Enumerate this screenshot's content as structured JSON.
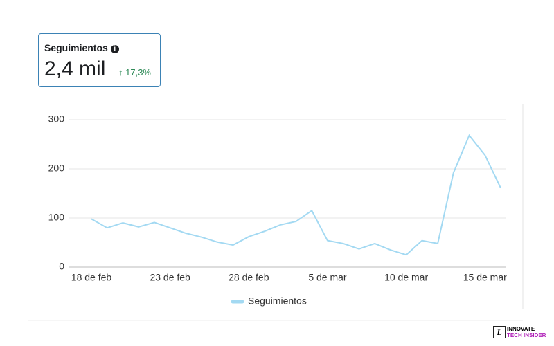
{
  "card": {
    "title": "Seguimientos",
    "value": "2,4 mil",
    "change": "17,3%"
  },
  "logo": {
    "mark": "L",
    "line1": "INNOVATE",
    "line2": "TECH INSIDER"
  },
  "chart_data": {
    "type": "line",
    "categories": [
      "18 de feb",
      null,
      null,
      null,
      null,
      "23 de feb",
      null,
      null,
      null,
      null,
      "28 de feb",
      null,
      null,
      null,
      null,
      "5 de mar",
      null,
      null,
      null,
      null,
      "10 de mar",
      null,
      null,
      null,
      null,
      "15 de mar",
      null
    ],
    "series": [
      {
        "name": "Seguimientos",
        "color": "#a3d9f2",
        "values": [
          98,
          80,
          90,
          82,
          91,
          80,
          69,
          61,
          51,
          45,
          62,
          73,
          86,
          93,
          115,
          54,
          48,
          37,
          48,
          35,
          25,
          54,
          48,
          192,
          268,
          228,
          161
        ]
      }
    ],
    "ylim": [
      0,
      300
    ],
    "yticks": [
      0,
      100,
      200,
      300
    ],
    "grid": true,
    "legend": "bottom"
  }
}
